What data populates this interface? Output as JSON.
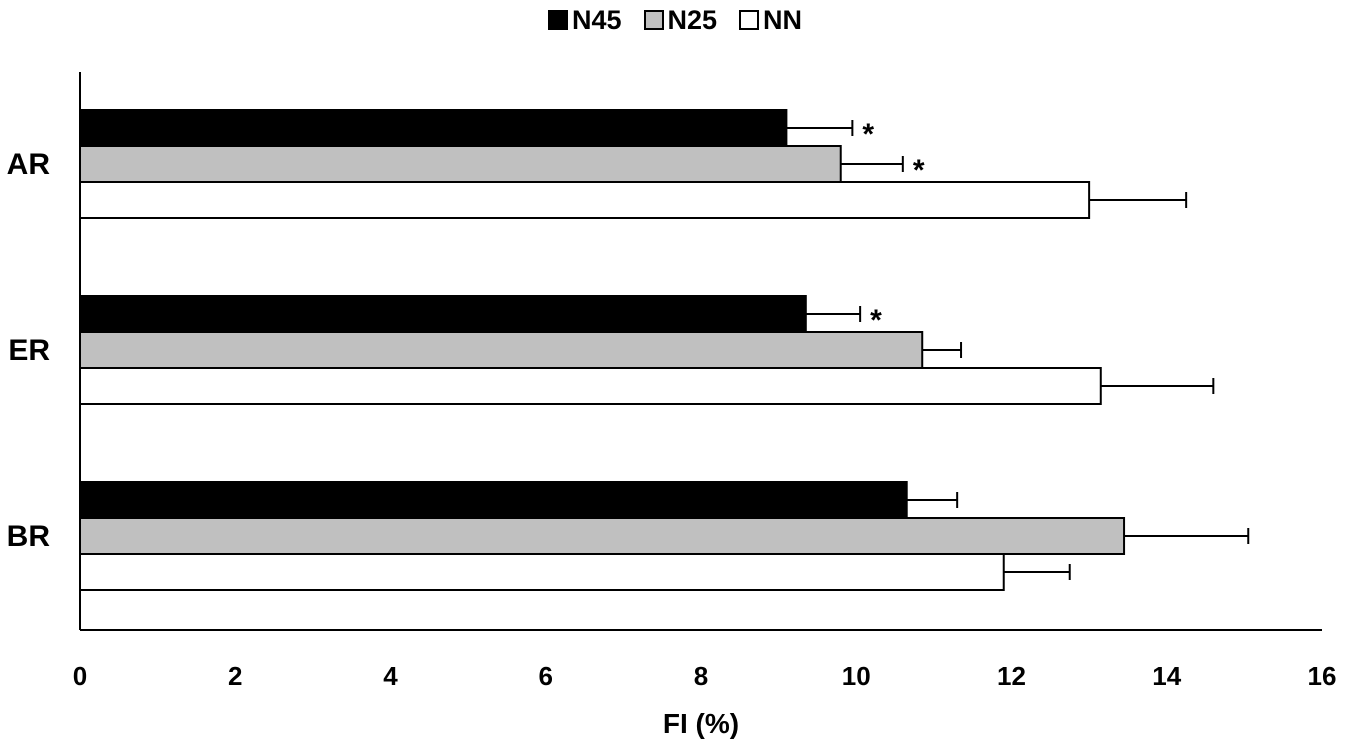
{
  "chart_data": {
    "type": "bar",
    "orientation": "horizontal",
    "categories": [
      "AR",
      "ER",
      "BR"
    ],
    "series": [
      {
        "name": "N45",
        "color": "#000000",
        "values": [
          9.1,
          9.35,
          10.65
        ],
        "errors": [
          0.85,
          0.7,
          0.65
        ],
        "significance": [
          "*",
          "*",
          ""
        ]
      },
      {
        "name": "N25",
        "color": "#c0c0c0",
        "values": [
          9.8,
          10.85,
          13.45
        ],
        "errors": [
          0.8,
          0.5,
          1.6
        ],
        "significance": [
          "*",
          "",
          ""
        ]
      },
      {
        "name": "NN",
        "color": "#ffffff",
        "values": [
          13.0,
          13.15,
          11.9
        ],
        "errors": [
          1.25,
          1.45,
          0.85
        ],
        "significance": [
          "",
          "",
          ""
        ]
      }
    ],
    "xlabel": "FI (%)",
    "ylabel": "",
    "xlim": [
      0,
      16
    ],
    "xticks": [
      "0",
      "2",
      "4",
      "6",
      "8",
      "10",
      "12",
      "14",
      "16"
    ],
    "grid": false,
    "legend_position": "top-center"
  }
}
